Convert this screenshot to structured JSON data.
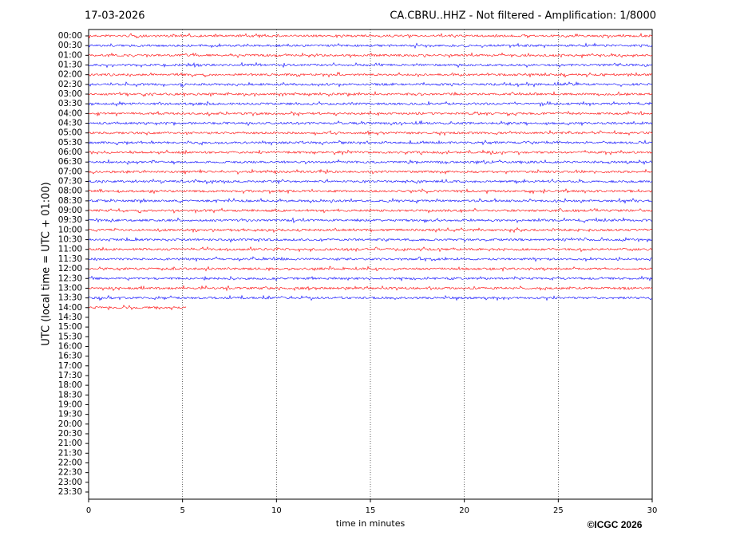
{
  "chart_data": {
    "type": "helicorder",
    "title": "17-03-2026",
    "subtitle": "CA.CBRU..HHZ - Not filtered - Amplification: 1/8000",
    "y_label": "UTC (local time = UTC + 01:00)",
    "x_label": "time in minutes",
    "credit": "©ICGC 2026",
    "categories": [
      "00:00",
      "00:30",
      "01:00",
      "01:30",
      "02:00",
      "02:30",
      "03:00",
      "03:30",
      "04:00",
      "04:30",
      "05:00",
      "05:30",
      "06:00",
      "06:30",
      "07:00",
      "07:30",
      "08:00",
      "08:30",
      "09:00",
      "09:30",
      "10:00",
      "10:30",
      "11:00",
      "11:30",
      "12:00",
      "12:30",
      "13:00",
      "13:30",
      "14:00",
      "14:30",
      "15:00",
      "15:30",
      "16:00",
      "16:30",
      "17:00",
      "17:30",
      "18:00",
      "18:30",
      "19:00",
      "19:30",
      "20:00",
      "20:30",
      "21:00",
      "21:30",
      "22:00",
      "22:30",
      "23:00",
      "23:30"
    ],
    "trace_end": [
      30,
      30,
      30,
      30,
      30,
      30,
      30,
      30,
      30,
      30,
      30,
      30,
      30,
      30,
      30,
      30,
      30,
      30,
      30,
      30,
      30,
      30,
      30,
      30,
      30,
      30,
      30,
      30,
      5.2,
      null,
      null,
      null,
      null,
      null,
      null,
      null,
      null,
      null,
      null,
      null,
      null,
      null,
      null,
      null,
      null,
      null,
      null,
      null
    ],
    "colors": [
      "#ff0000",
      "#0000ff"
    ],
    "xlim": [
      0,
      30
    ],
    "xticks": [
      0,
      5,
      10,
      15,
      20,
      25,
      30
    ],
    "grid": true
  }
}
